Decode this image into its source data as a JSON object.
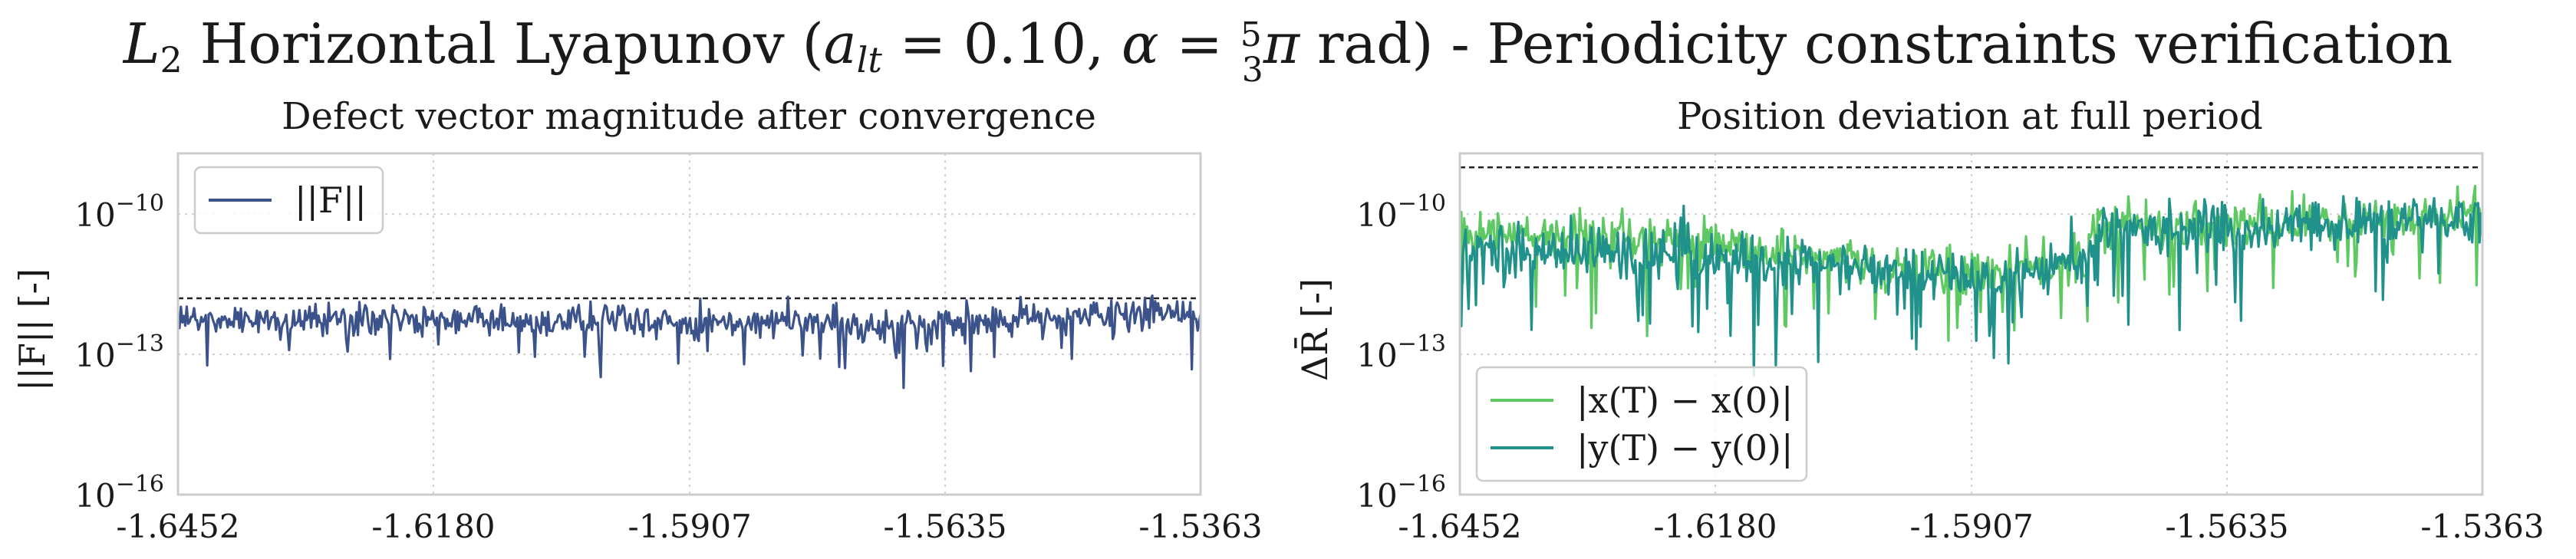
{
  "figure": {
    "suptitle_parts": {
      "l2": "L",
      "l2_sub": "2",
      "mid": " Horizontal Lyapunov (",
      "a": "a",
      "a_sub": "lt",
      "eq1": " = 0.10, ",
      "alpha": "α",
      "eq2": " = ",
      "frac_num": "5",
      "frac_den": "3",
      "pi": "π",
      "tail": " rad) - Periodicity constraints verification"
    }
  },
  "chart_data": [
    {
      "type": "line",
      "title": "Defect vector magnitude after convergence",
      "ylabel": "||F|| [-]",
      "xlim": [
        -1.6452,
        -1.5363
      ],
      "xticks": [
        "-1.6452",
        "-1.6180",
        "-1.5907",
        "-1.5635",
        "-1.5363"
      ],
      "yscale": "log",
      "ylim_exp": [
        -16,
        -8.7
      ],
      "yticks": [
        {
          "exp": -16,
          "label": "10",
          "sup": "−16"
        },
        {
          "exp": -13,
          "label": "10",
          "sup": "−13"
        },
        {
          "exp": -10,
          "label": "10",
          "sup": "−10"
        }
      ],
      "threshold_exp": -11.8,
      "grid": true,
      "legend_position": "upper-left",
      "series": [
        {
          "name": "||F||",
          "color": "#3b528b",
          "n_points": 700,
          "x": [
            -1.6452,
            -1.618,
            -1.5907,
            -1.5635,
            -1.5363
          ],
          "log10_y_center": [
            -12.25,
            -12.25,
            -12.3,
            -12.35,
            -12.05
          ],
          "log10_y_noise": 0.3
        }
      ]
    },
    {
      "type": "line",
      "title": "Position deviation at full period",
      "ylabel": "ΔR̄ [-]",
      "xlim": [
        -1.6452,
        -1.5363
      ],
      "xticks": [
        "-1.6452",
        "-1.6180",
        "-1.5907",
        "-1.5635",
        "-1.5363"
      ],
      "yscale": "log",
      "ylim_exp": [
        -16,
        -8.7
      ],
      "yticks": [
        {
          "exp": -16,
          "label": "10",
          "sup": "−16"
        },
        {
          "exp": -13,
          "label": "10",
          "sup": "−13"
        },
        {
          "exp": -10,
          "label": "10",
          "sup": "−10"
        }
      ],
      "threshold_exp": -9.0,
      "grid": true,
      "legend_position": "lower-left",
      "series": [
        {
          "name": "|x(T) − x(0)|",
          "color": "#5ec962",
          "n_points": 700,
          "x": [
            -1.6452,
            -1.618,
            -1.5907,
            -1.5786,
            -1.5774,
            -1.5635,
            -1.5363
          ],
          "log10_y_center": [
            -10.4,
            -10.7,
            -11.3,
            -11.0,
            -10.2,
            -10.25,
            -10.0
          ],
          "log10_y_noise": 0.45
        },
        {
          "name": "|y(T) − y(0)|",
          "color": "#21918c",
          "n_points": 700,
          "x": [
            -1.6452,
            -1.618,
            -1.5907,
            -1.5786,
            -1.5774,
            -1.5635,
            -1.5363
          ],
          "log10_y_center": [
            -10.7,
            -10.9,
            -11.35,
            -11.0,
            -10.3,
            -10.35,
            -10.1
          ],
          "log10_y_noise": 0.5
        }
      ]
    }
  ]
}
